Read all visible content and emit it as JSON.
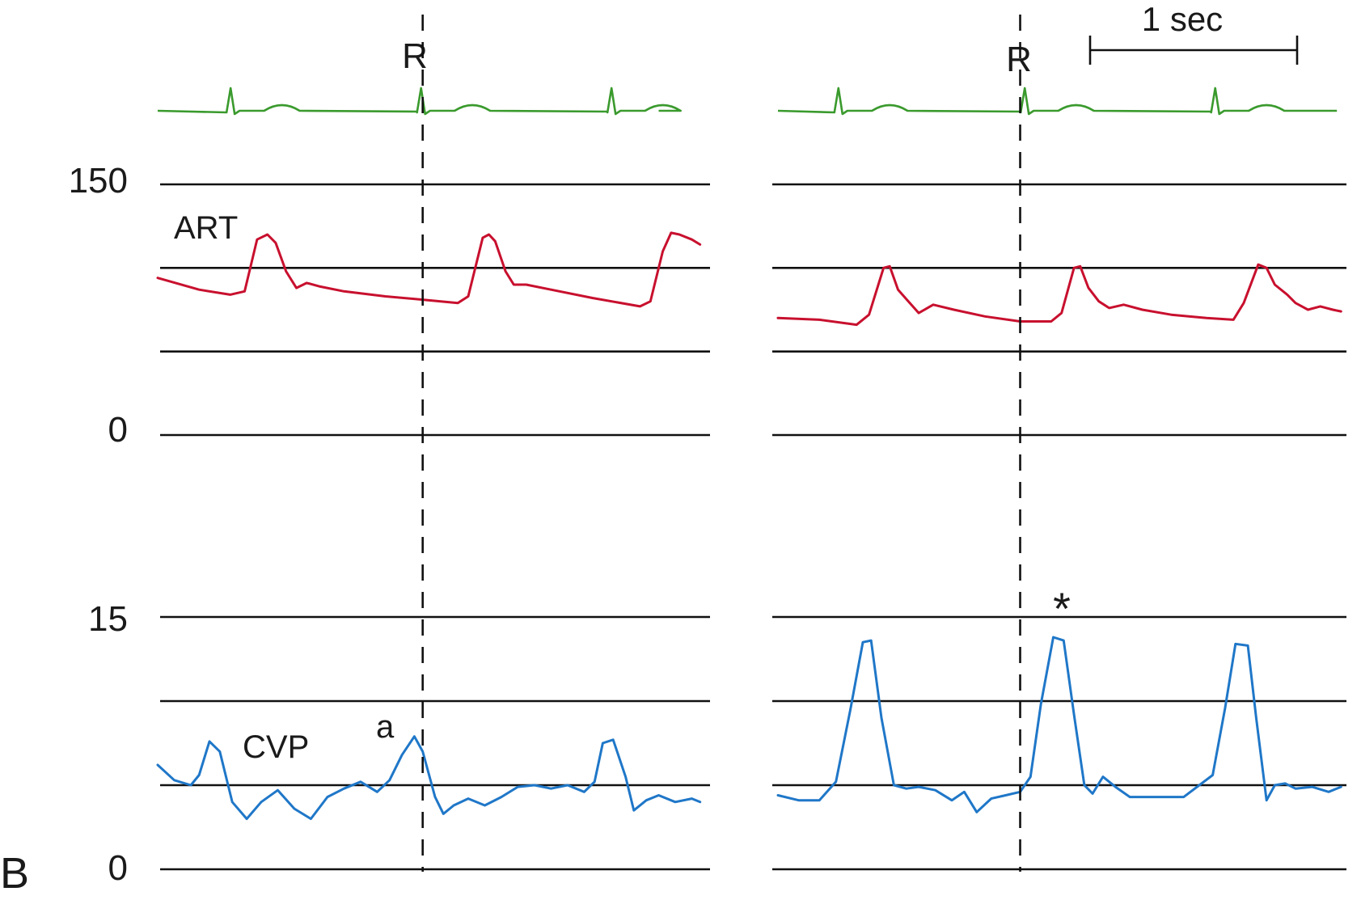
{
  "chart_data": {
    "type": "line",
    "title": "",
    "panel_label": "B",
    "time_scale": {
      "label": "1 sec",
      "seconds": 1
    },
    "colors": {
      "ECG": "#3a9a2d",
      "ART": "#c8102e",
      "CVP": "#1f77c8"
    },
    "art_axis": {
      "ticks": [
        "150",
        "0"
      ],
      "range": [
        0,
        150
      ],
      "gridlines": [
        150,
        100,
        50,
        0
      ]
    },
    "cvp_axis": {
      "ticks": [
        "15",
        "0"
      ],
      "range": [
        0,
        15
      ],
      "gridlines": [
        15,
        10,
        5,
        0
      ]
    },
    "markers": {
      "r_wave": "R",
      "a_wave": "a",
      "asterisk": "*"
    },
    "panels": [
      {
        "ecg_r_times": [
          0.36,
          1.28,
          2.2
        ],
        "r_line_time": 1.28,
        "a_wave_time": 1.25,
        "series": [
          {
            "name": "ART",
            "x": [
              0.0,
              0.2,
              0.35,
              0.42,
              0.48,
              0.53,
              0.57,
              0.62,
              0.67,
              0.72,
              0.78,
              0.9,
              1.1,
              1.28,
              1.45,
              1.5,
              1.57,
              1.6,
              1.63,
              1.68,
              1.72,
              1.78,
              1.9,
              2.1,
              2.33,
              2.38,
              2.44,
              2.48,
              2.52,
              2.58,
              2.62
            ],
            "y": [
              94,
              87,
              84,
              86,
              117,
              120,
              115,
              98,
              88,
              91,
              89,
              86,
              83,
              81,
              79,
              83,
              118,
              120,
              116,
              98,
              90,
              90,
              87,
              82,
              77,
              80,
              110,
              121,
              120,
              117,
              114
            ]
          },
          {
            "name": "CVP",
            "x": [
              0.0,
              0.08,
              0.16,
              0.2,
              0.25,
              0.3,
              0.36,
              0.43,
              0.5,
              0.58,
              0.66,
              0.74,
              0.82,
              0.9,
              0.98,
              1.06,
              1.12,
              1.18,
              1.24,
              1.28,
              1.34,
              1.38,
              1.43,
              1.5,
              1.58,
              1.66,
              1.74,
              1.82,
              1.9,
              1.98,
              2.06,
              2.11,
              2.15,
              2.2,
              2.26,
              2.3,
              2.36,
              2.42,
              2.5,
              2.58,
              2.62
            ],
            "y": [
              6.2,
              5.3,
              5.0,
              5.6,
              7.6,
              7.0,
              4.0,
              3.0,
              4.0,
              4.7,
              3.6,
              3.0,
              4.3,
              4.8,
              5.2,
              4.6,
              5.3,
              6.8,
              7.9,
              7.0,
              4.3,
              3.3,
              3.8,
              4.2,
              3.8,
              4.3,
              4.9,
              5.0,
              4.8,
              5.0,
              4.6,
              5.2,
              7.5,
              7.7,
              5.5,
              3.5,
              4.1,
              4.4,
              4.0,
              4.2,
              4.0
            ]
          }
        ]
      },
      {
        "ecg_r_times": [
          0.3,
          1.2,
          2.12
        ],
        "r_line_time": 1.17,
        "asterisk_time": 1.35,
        "series": [
          {
            "name": "ART",
            "x": [
              0.0,
              0.2,
              0.38,
              0.44,
              0.51,
              0.54,
              0.58,
              0.63,
              0.68,
              0.75,
              0.85,
              1.0,
              1.17,
              1.32,
              1.37,
              1.43,
              1.46,
              1.5,
              1.55,
              1.6,
              1.67,
              1.76,
              1.9,
              2.07,
              2.2,
              2.25,
              2.32,
              2.36,
              2.4,
              2.46,
              2.5,
              2.56,
              2.62,
              2.68,
              2.72
            ],
            "y": [
              70,
              69,
              66,
              72,
              100,
              101,
              87,
              80,
              73,
              78,
              75,
              71,
              68,
              68,
              73,
              100,
              101,
              88,
              80,
              76,
              78,
              75,
              72,
              70,
              69,
              79,
              102,
              100,
              90,
              84,
              79,
              75,
              77,
              75,
              74
            ]
          },
          {
            "name": "CVP",
            "x": [
              0.0,
              0.1,
              0.2,
              0.28,
              0.35,
              0.41,
              0.45,
              0.5,
              0.56,
              0.62,
              0.68,
              0.76,
              0.84,
              0.9,
              0.96,
              1.03,
              1.1,
              1.17,
              1.22,
              1.27,
              1.33,
              1.38,
              1.43,
              1.48,
              1.52,
              1.57,
              1.63,
              1.7,
              1.8,
              1.96,
              2.1,
              2.16,
              2.21,
              2.27,
              2.31,
              2.36,
              2.4,
              2.45,
              2.5,
              2.58,
              2.66,
              2.72
            ],
            "y": [
              4.4,
              4.1,
              4.1,
              5.2,
              9.5,
              13.5,
              13.6,
              9.0,
              5.0,
              4.8,
              4.9,
              4.7,
              4.1,
              4.6,
              3.4,
              4.2,
              4.4,
              4.6,
              5.5,
              9.8,
              13.8,
              13.6,
              9.2,
              5.0,
              4.5,
              5.5,
              4.9,
              4.3,
              4.3,
              4.3,
              5.6,
              9.6,
              13.4,
              13.3,
              9.0,
              4.1,
              5.0,
              5.1,
              4.8,
              4.9,
              4.6,
              4.9
            ]
          }
        ]
      }
    ]
  }
}
